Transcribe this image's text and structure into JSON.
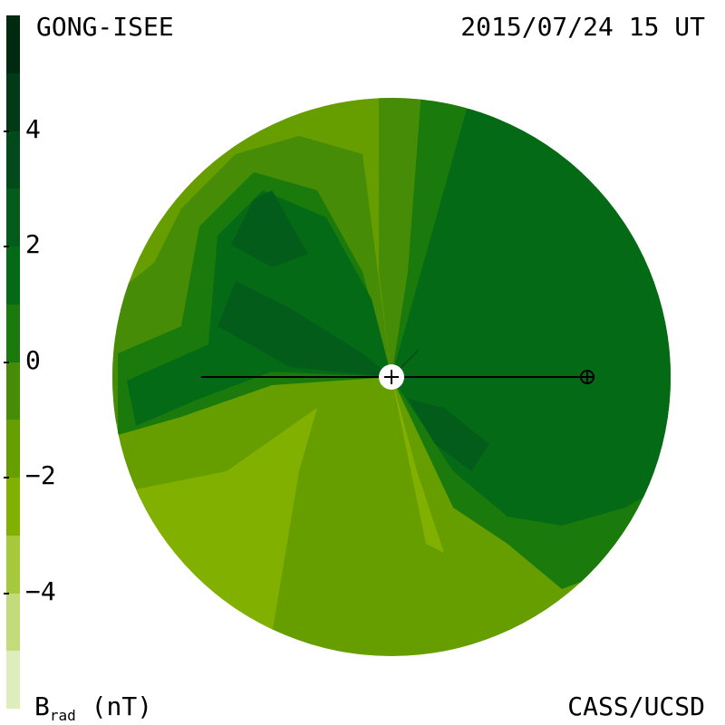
{
  "header": {
    "source": "GONG-ISEE",
    "datetime": "2015/07/24 15 UT"
  },
  "footer": {
    "quantity": "B",
    "quantity_sub": "rad",
    "unit": "(nT)",
    "credit": "CASS/UCSD"
  },
  "chart_data": {
    "type": "heatmap",
    "title": "",
    "colorbar": {
      "min": -6,
      "max": 6,
      "ticks": [
        4,
        2,
        0,
        -2,
        -4
      ],
      "tick_labels": [
        "4",
        "2",
        "0",
        "−2",
        "−4"
      ],
      "levels": [
        {
          "from": 5,
          "to": 6,
          "color": "#002a10"
        },
        {
          "from": 4,
          "to": 5,
          "color": "#013a17"
        },
        {
          "from": 3,
          "to": 4,
          "color": "#024a1c"
        },
        {
          "from": 2,
          "to": 3,
          "color": "#035c1a"
        },
        {
          "from": 1,
          "to": 2,
          "color": "#056a16"
        },
        {
          "from": 0,
          "to": 1,
          "color": "#1a7a0c"
        },
        {
          "from": -1,
          "to": 0,
          "color": "#468c06"
        },
        {
          "from": -2,
          "to": -1,
          "color": "#669e00"
        },
        {
          "from": -3,
          "to": -2,
          "color": "#82b000"
        },
        {
          "from": -4,
          "to": -3,
          "color": "#a6c93c"
        },
        {
          "from": -5,
          "to": -4,
          "color": "#c2dc7c"
        },
        {
          "from": -6,
          "to": -5,
          "color": "#dfecbc"
        }
      ]
    },
    "map": {
      "sun_marker": "sun-icon",
      "earth_marker": "earth-icon",
      "regions": [
        {
          "name": "east-negative-lobe",
          "level": -2
        },
        {
          "name": "south-negative-sector",
          "level": -3
        },
        {
          "name": "south-center-sector",
          "level": -2
        },
        {
          "name": "west-positive-sector",
          "level": 1
        },
        {
          "name": "north-positive-lobe",
          "level": 3
        },
        {
          "name": "southeast-positive-lobe",
          "level": 2
        }
      ]
    }
  }
}
